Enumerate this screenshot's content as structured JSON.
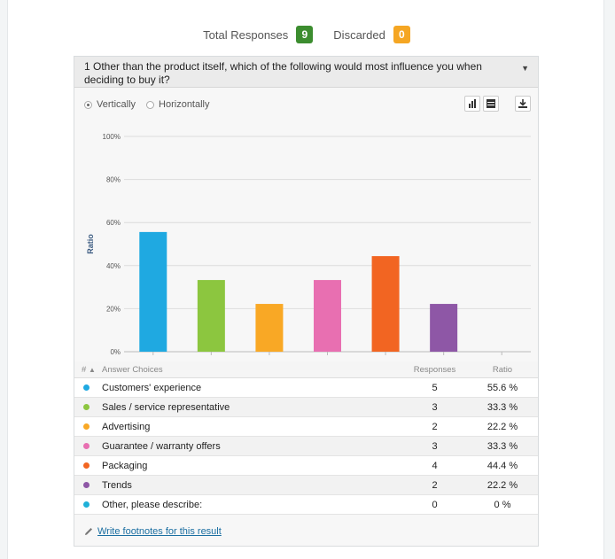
{
  "stats": {
    "total_label": "Total Responses",
    "total_value": "9",
    "discarded_label": "Discarded",
    "discarded_value": "0"
  },
  "question": {
    "text": "1 Other than the product itself, which of the following would most influence you when deciding to buy it?"
  },
  "orientation": {
    "vertical_label": "Vertically",
    "horizontal_label": "Horizontally",
    "selected": "Vertically"
  },
  "icons": {
    "bar": "bar-chart-icon",
    "table": "table-icon",
    "download": "download-icon",
    "pencil": "pencil-icon",
    "sort": "sort-arrow-icon"
  },
  "chart_data": {
    "type": "bar",
    "ylabel": "Ratio",
    "yticks": [
      "0%",
      "20%",
      "40%",
      "60%",
      "80%",
      "100%"
    ],
    "ylim": [
      0,
      100
    ],
    "grid": true,
    "categories": [
      "Customers' experience",
      "Sales / service representative",
      "Advertising",
      "Guarantee / warranty offers",
      "Packaging",
      "Trends",
      "Other, please describe:"
    ],
    "values": [
      55.6,
      33.3,
      22.2,
      33.3,
      44.4,
      22.2,
      0
    ],
    "colors": [
      "#1fa9e1",
      "#8cc63f",
      "#f9a825",
      "#e86fb1",
      "#f26522",
      "#8e57a6",
      "#1fb0d8"
    ]
  },
  "table": {
    "headers": {
      "num": "#",
      "choice": "Answer Choices",
      "responses": "Responses",
      "ratio": "Ratio"
    },
    "rows": [
      {
        "choice": "Customers' experience",
        "responses": "5",
        "ratio": "55.6 %"
      },
      {
        "choice": "Sales / service representative",
        "responses": "3",
        "ratio": "33.3 %"
      },
      {
        "choice": "Advertising",
        "responses": "2",
        "ratio": "22.2 %"
      },
      {
        "choice": "Guarantee / warranty offers",
        "responses": "3",
        "ratio": "33.3 %"
      },
      {
        "choice": "Packaging",
        "responses": "4",
        "ratio": "44.4 %"
      },
      {
        "choice": "Trends",
        "responses": "2",
        "ratio": "22.2 %"
      },
      {
        "choice": "Other, please describe:",
        "responses": "0",
        "ratio": "0 %"
      }
    ]
  },
  "footnote": {
    "link": "Write footnotes for this result"
  }
}
